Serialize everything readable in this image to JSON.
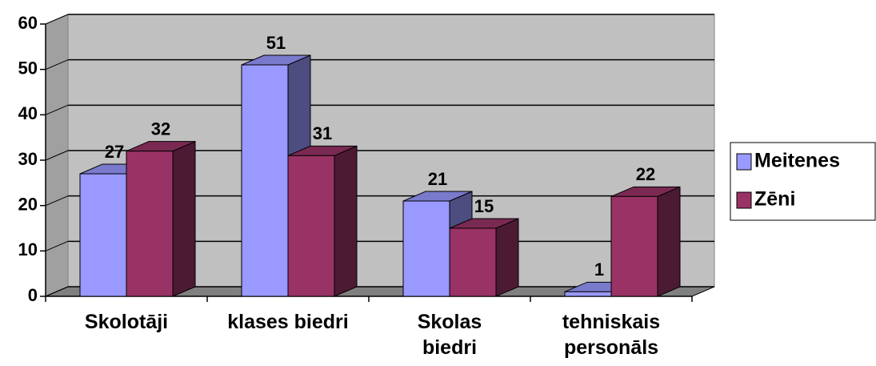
{
  "chart_data": {
    "type": "bar3d",
    "categories": [
      "Skolotāji",
      "klases biedri",
      "Skolas\nbiedri",
      "tehniskais\npersonāls"
    ],
    "series": [
      {
        "name": "Meitenes",
        "color": "#9999ff",
        "values": [
          27,
          51,
          21,
          1
        ]
      },
      {
        "name": "Zēni",
        "color": "#993366",
        "values": [
          32,
          31,
          15,
          22
        ]
      }
    ],
    "ylim": [
      0,
      60
    ],
    "yticks": [
      0,
      10,
      20,
      30,
      40,
      50,
      60
    ],
    "grid": true,
    "legend": "right"
  }
}
